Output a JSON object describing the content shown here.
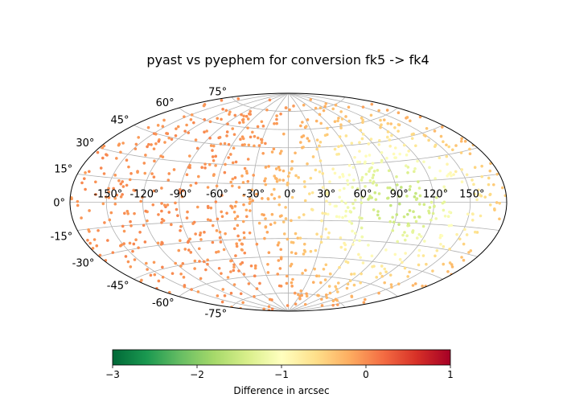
{
  "chart_data": {
    "type": "scatter",
    "projection": "aitoff",
    "title": "pyast vs pyephem for conversion fk5 -> fk4",
    "x_tick_labels": [
      "-150°",
      "-120°",
      "-90°",
      "-60°",
      "-30°",
      "0°",
      "30°",
      "60°",
      "90°",
      "120°",
      "150°"
    ],
    "x_tick_values": [
      -150,
      -120,
      -90,
      -60,
      -30,
      0,
      30,
      60,
      90,
      120,
      150
    ],
    "y_tick_labels": [
      "-75°",
      "-60°",
      "-45°",
      "-30°",
      "-15°",
      "0°",
      "15°",
      "30°",
      "45°",
      "60°",
      "75°"
    ],
    "y_tick_values": [
      -75,
      -60,
      -45,
      -30,
      -15,
      0,
      15,
      30,
      45,
      60,
      75
    ],
    "grid": true,
    "colormap": "RdYlGn_r",
    "colorbar": {
      "label": "Difference in arcsec",
      "range": [
        -3,
        1
      ],
      "ticks": [
        -3,
        -2,
        -1,
        0,
        1
      ],
      "tick_labels": [
        "−3",
        "−2",
        "−1",
        "0",
        "1"
      ],
      "orientation": "horizontal"
    },
    "point_count": 1000,
    "value_trend": "difference ≈ 0 arcsec on left/west side, rising toward ≈ -1.5 arcsec near longitude 60°–120°, latitude ±30°"
  }
}
